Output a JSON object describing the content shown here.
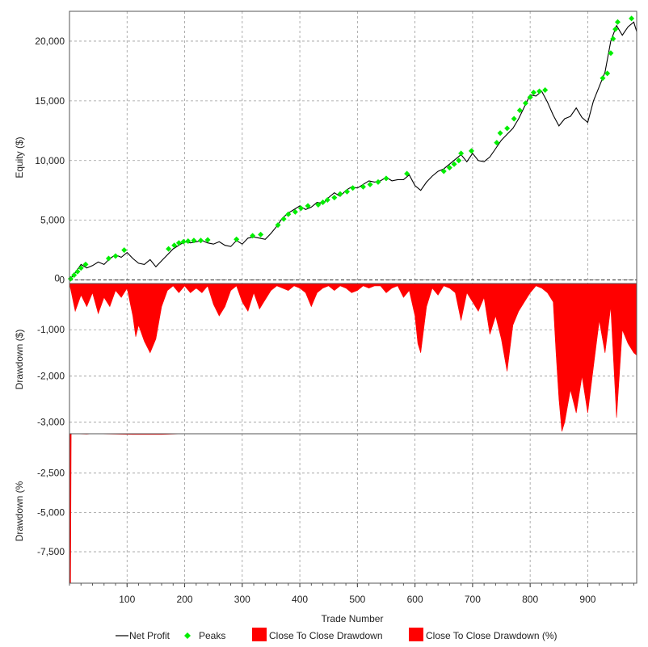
{
  "chart_data": [
    {
      "type": "line",
      "ylabel": "Equity ($)",
      "ylim": [
        -300,
        22500
      ],
      "yticks": [
        0,
        5000,
        10000,
        15000,
        20000
      ],
      "ytick_labels": [
        "0",
        "5,000",
        "10,000",
        "15,000",
        "20,000"
      ],
      "grid": true,
      "series": [
        {
          "name": "Net Profit",
          "type": "line",
          "color": "#000000",
          "x": [
            0,
            10,
            20,
            30,
            40,
            50,
            60,
            70,
            80,
            90,
            100,
            110,
            120,
            130,
            140,
            150,
            160,
            170,
            180,
            190,
            200,
            210,
            220,
            230,
            240,
            250,
            260,
            270,
            280,
            290,
            300,
            310,
            320,
            330,
            340,
            350,
            360,
            370,
            380,
            390,
            400,
            410,
            420,
            430,
            440,
            450,
            460,
            470,
            480,
            490,
            500,
            510,
            520,
            530,
            540,
            550,
            560,
            570,
            580,
            590,
            600,
            610,
            620,
            630,
            640,
            650,
            660,
            670,
            680,
            690,
            700,
            710,
            720,
            730,
            740,
            750,
            760,
            770,
            780,
            790,
            800,
            810,
            820,
            830,
            840,
            850,
            860,
            870,
            880,
            890,
            900,
            910,
            920,
            930,
            940,
            950,
            960,
            970,
            980,
            985
          ],
          "y": [
            0,
            600,
            1300,
            1000,
            1200,
            1500,
            1300,
            1800,
            2100,
            1900,
            2300,
            1800,
            1400,
            1300,
            1700,
            1100,
            1600,
            2100,
            2600,
            2900,
            3200,
            3100,
            3200,
            3300,
            3100,
            3000,
            3200,
            2900,
            2800,
            3300,
            3000,
            3500,
            3600,
            3500,
            3400,
            3900,
            4500,
            5200,
            5600,
            5900,
            6200,
            5900,
            6100,
            6500,
            6400,
            6900,
            7300,
            7000,
            7500,
            7800,
            7700,
            8000,
            8300,
            8200,
            8300,
            8600,
            8300,
            8400,
            8400,
            8800,
            7900,
            7500,
            8200,
            8700,
            9100,
            9300,
            9700,
            10100,
            10500,
            9900,
            10600,
            10000,
            9900,
            10300,
            11000,
            11700,
            12200,
            12700,
            13500,
            14500,
            15500,
            15400,
            15800,
            14900,
            13800,
            12900,
            13500,
            13700,
            14400,
            13600,
            13200,
            15000,
            16200,
            17400,
            20000,
            21300,
            20500,
            21200,
            21600,
            20800
          ]
        },
        {
          "name": "Peaks",
          "type": "scatter",
          "color": "#00ee00",
          "x": [
            2,
            8,
            14,
            20,
            28,
            68,
            80,
            95,
            172,
            182,
            190,
            198,
            206,
            216,
            228,
            240,
            290,
            318,
            332,
            362,
            372,
            380,
            392,
            402,
            414,
            432,
            440,
            448,
            460,
            470,
            482,
            492,
            510,
            522,
            536,
            550,
            586,
            650,
            660,
            668,
            676,
            680,
            698,
            742,
            748,
            760,
            772,
            782,
            792,
            800,
            806,
            816,
            826,
            926,
            934,
            940,
            944,
            948,
            952,
            976
          ],
          "y": [
            100,
            400,
            700,
            1000,
            1300,
            1800,
            2000,
            2500,
            2600,
            2900,
            3100,
            3200,
            3250,
            3300,
            3300,
            3350,
            3400,
            3700,
            3800,
            4600,
            5100,
            5500,
            5700,
            6000,
            6200,
            6300,
            6500,
            6700,
            6900,
            7200,
            7400,
            7700,
            7800,
            8000,
            8200,
            8500,
            8900,
            9100,
            9400,
            9700,
            10000,
            10600,
            10800,
            11500,
            12300,
            12700,
            13500,
            14200,
            14800,
            15300,
            15700,
            15800,
            15900,
            16900,
            17300,
            19000,
            20200,
            21000,
            21600,
            21900
          ]
        }
      ]
    },
    {
      "type": "area",
      "ylabel": "Drawdown ($)",
      "ylim": [
        -3250,
        0
      ],
      "yticks": [
        -1000,
        -2000,
        -3000
      ],
      "ytick_labels": [
        "-1,000",
        "-2,000",
        "-3,000"
      ],
      "grid": true,
      "series": [
        {
          "name": "Close To Close Drawdown",
          "color": "#ff0000",
          "x": [
            0,
            10,
            20,
            30,
            40,
            50,
            60,
            70,
            80,
            90,
            100,
            110,
            115,
            120,
            130,
            140,
            150,
            160,
            170,
            180,
            190,
            200,
            210,
            220,
            230,
            240,
            250,
            260,
            270,
            280,
            290,
            300,
            310,
            320,
            330,
            340,
            350,
            360,
            370,
            380,
            390,
            400,
            410,
            420,
            430,
            440,
            450,
            460,
            470,
            480,
            490,
            500,
            510,
            520,
            530,
            540,
            550,
            560,
            570,
            580,
            590,
            600,
            605,
            610,
            615,
            620,
            630,
            640,
            650,
            660,
            670,
            680,
            690,
            700,
            710,
            720,
            730,
            740,
            750,
            760,
            770,
            780,
            790,
            800,
            810,
            820,
            830,
            840,
            845,
            850,
            855,
            860,
            870,
            880,
            890,
            900,
            910,
            920,
            930,
            940,
            950,
            960,
            970,
            980,
            985
          ],
          "y": [
            0,
            -600,
            -250,
            -500,
            -200,
            -650,
            -300,
            -500,
            -150,
            -300,
            -100,
            -700,
            -1150,
            -900,
            -1250,
            -1500,
            -1200,
            -500,
            -150,
            -50,
            -200,
            -50,
            -200,
            -100,
            -200,
            -50,
            -450,
            -700,
            -500,
            -150,
            -50,
            -400,
            -600,
            -200,
            -550,
            -350,
            -150,
            -50,
            -100,
            -150,
            -50,
            -100,
            -200,
            -500,
            -200,
            -100,
            -50,
            -150,
            -50,
            -100,
            -200,
            -150,
            -50,
            -100,
            -50,
            -50,
            -200,
            -100,
            -50,
            -300,
            -150,
            -700,
            -1300,
            -1500,
            -1000,
            -500,
            -100,
            -250,
            -50,
            -100,
            -200,
            -800,
            -200,
            -400,
            -600,
            -300,
            -1100,
            -700,
            -1200,
            -1900,
            -900,
            -600,
            -400,
            -200,
            -50,
            -100,
            -200,
            -400,
            -1500,
            -2500,
            -3200,
            -3000,
            -2300,
            -2800,
            -2000,
            -2800,
            -1800,
            -800,
            -1500,
            -500,
            -2900,
            -1000,
            -1300,
            -1500,
            -1550
          ]
        }
      ]
    },
    {
      "type": "area",
      "ylabel": "Drawdown (%",
      "xlabel": "Trade Number",
      "ylim": [
        -9500,
        0
      ],
      "yticks": [
        -2500,
        -5000,
        -7500
      ],
      "ytick_labels": [
        "-2,500",
        "-5,000",
        "-7,500"
      ],
      "xlim": [
        0,
        985
      ],
      "xticks": [
        100,
        200,
        300,
        400,
        500,
        600,
        700,
        800,
        900
      ],
      "xtick_labels": [
        "100",
        "200",
        "300",
        "400",
        "500",
        "600",
        "700",
        "800",
        "900"
      ],
      "grid": true,
      "series": [
        {
          "name": "Close To Close Drawdown (%)",
          "color": "#ff0000",
          "x": [
            0,
            1,
            2,
            3,
            4,
            5,
            30,
            40,
            110,
            160,
            200,
            985
          ],
          "y": [
            0,
            -9500,
            -9500,
            -30,
            0,
            0,
            -20,
            0,
            -40,
            -40,
            0,
            0
          ]
        }
      ]
    }
  ],
  "legend": {
    "placement": "bottom",
    "items": [
      {
        "label": "Net Profit",
        "marker": "line",
        "color": "#000000"
      },
      {
        "label": "Peaks",
        "marker": "diamond",
        "color": "#00ee00"
      },
      {
        "label": "Close To Close Drawdown",
        "marker": "box",
        "color": "#ff0000"
      },
      {
        "label": "Close To Close Drawdown (%)",
        "marker": "box",
        "color": "#ff0000"
      }
    ]
  }
}
